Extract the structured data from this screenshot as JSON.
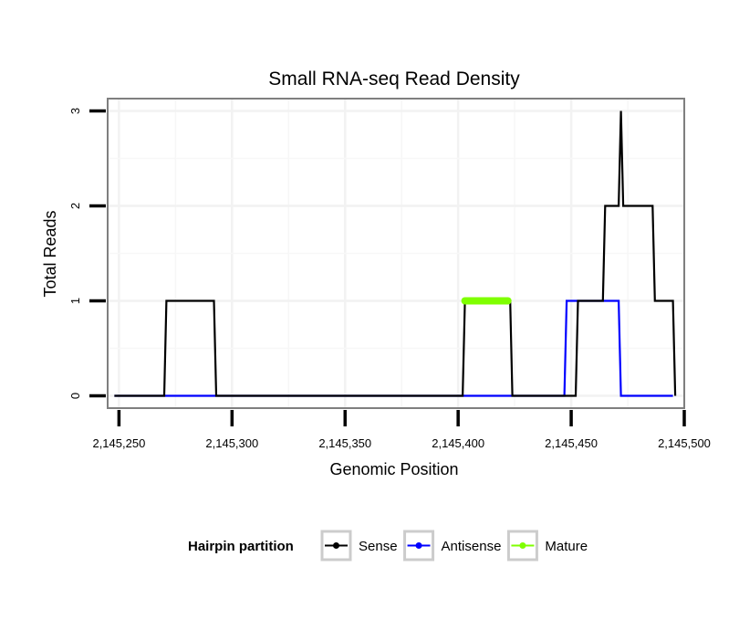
{
  "chart_data": {
    "type": "line",
    "title": "Small RNA-seq Read Density",
    "xlabel": "Genomic Position",
    "ylabel": "Total Reads",
    "xlim": [
      2145245,
      2145500
    ],
    "ylim": [
      -0.13,
      3.13
    ],
    "x_ticks": [
      2145250,
      2145300,
      2145350,
      2145400,
      2145450,
      2145500
    ],
    "x_tick_labels": [
      "2,145,250",
      "2,145,300",
      "2,145,350",
      "2,145,400",
      "2,145,450",
      "2,145,500"
    ],
    "y_ticks": [
      0,
      1,
      2,
      3
    ],
    "y_tick_labels": [
      "0",
      "1",
      "2",
      "3"
    ],
    "grid": true,
    "legend": {
      "title": "Hairpin partition",
      "position": "bottom",
      "entries": [
        "Sense",
        "Antisense",
        "Mature"
      ]
    },
    "series": [
      {
        "name": "Sense",
        "color": "#000000",
        "x": [
          2145248,
          2145270,
          2145271,
          2145292,
          2145293,
          2145402,
          2145403,
          2145423,
          2145424,
          2145452,
          2145453,
          2145464,
          2145465,
          2145471,
          2145472,
          2145473,
          2145486,
          2145487,
          2145495,
          2145496
        ],
        "y": [
          0,
          0,
          1,
          1,
          0,
          0,
          1,
          1,
          0,
          0,
          1,
          1,
          2,
          2,
          3,
          2,
          2,
          1,
          1,
          0
        ]
      },
      {
        "name": "Antisense",
        "color": "#0000ff",
        "x": [
          2145248,
          2145447,
          2145448,
          2145471,
          2145472,
          2145495
        ],
        "y": [
          0,
          0,
          1,
          1,
          0,
          0
        ]
      },
      {
        "name": "Mature",
        "color": "#7fff00",
        "x": [
          2145403,
          2145422
        ],
        "y": [
          1,
          1
        ]
      }
    ]
  }
}
